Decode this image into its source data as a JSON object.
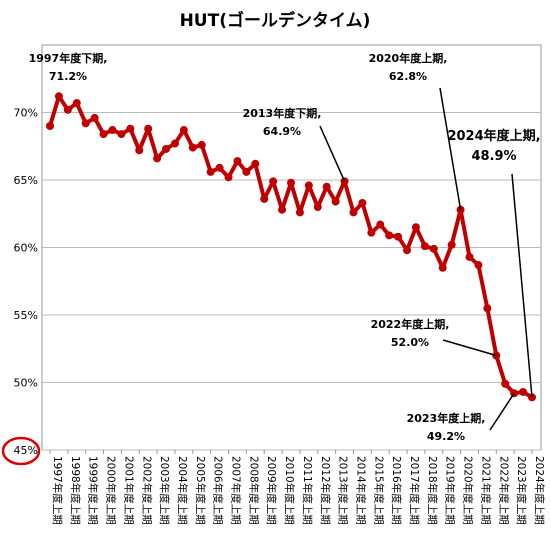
{
  "chart_data": {
    "type": "line",
    "title": "HUT(ゴールデンタイム)",
    "categories": [
      "1997年度上期",
      null,
      "1998年度上期",
      null,
      "1999年度上期",
      null,
      "2000年度上期",
      null,
      "2001年度上期",
      null,
      "2002年度上期",
      null,
      "2003年度上期",
      null,
      "2004年度上期",
      null,
      "2005年度上期",
      null,
      "2006年度上期",
      null,
      "2007年度上期",
      null,
      "2008年度上期",
      null,
      "2009年度上期",
      null,
      "2010年度上期",
      null,
      "2011年度上期",
      null,
      "2012年度上期",
      null,
      "2013年度上期",
      null,
      "2014年度上期",
      null,
      "2015年度上期",
      null,
      "2016年度上期",
      null,
      "2017年度上期",
      null,
      "2018年度上期",
      null,
      "2019年度上期",
      null,
      "2020年度上期",
      null,
      "2021年度上期",
      null,
      "2022年度上期",
      null,
      "2023年度上期",
      null,
      "2024年度上期"
    ],
    "series": [
      {
        "name": "HUT",
        "color": "#c00000",
        "values": [
          69.0,
          71.2,
          70.2,
          70.7,
          69.2,
          69.6,
          68.4,
          68.7,
          68.4,
          68.8,
          67.2,
          68.8,
          66.6,
          67.3,
          67.7,
          68.7,
          67.4,
          67.6,
          65.6,
          65.9,
          65.2,
          66.4,
          65.6,
          66.2,
          63.6,
          64.9,
          62.8,
          64.8,
          62.6,
          64.6,
          63.0,
          64.5,
          63.4,
          64.9,
          62.6,
          63.3,
          61.1,
          61.7,
          60.9,
          60.8,
          59.8,
          61.5,
          60.1,
          59.9,
          58.5,
          60.2,
          62.8,
          59.3,
          58.7,
          55.5,
          52.0,
          49.9,
          49.2,
          49.3,
          48.9
        ]
      }
    ],
    "ylim": [
      45,
      75
    ],
    "yticks": [
      {
        "value": 45,
        "label": "45%"
      },
      {
        "value": 50,
        "label": "50%"
      },
      {
        "value": 55,
        "label": "55%"
      },
      {
        "value": 60,
        "label": "60%"
      },
      {
        "value": 65,
        "label": "65%"
      },
      {
        "value": 70,
        "label": "70%"
      }
    ],
    "grid": true,
    "annotations": [
      {
        "lines": [
          "1997年度下期,",
          "71.2%"
        ]
      },
      {
        "lines": [
          "2013年度下期,",
          "64.9%"
        ]
      },
      {
        "lines": [
          "2020年度上期,",
          "62.8%"
        ]
      },
      {
        "lines": [
          "2024年度上期,",
          "48.9%"
        ]
      },
      {
        "lines": [
          "2022年度上期,",
          "52.0%"
        ]
      },
      {
        "lines": [
          "2023年度上期,",
          "49.2%"
        ]
      }
    ]
  }
}
